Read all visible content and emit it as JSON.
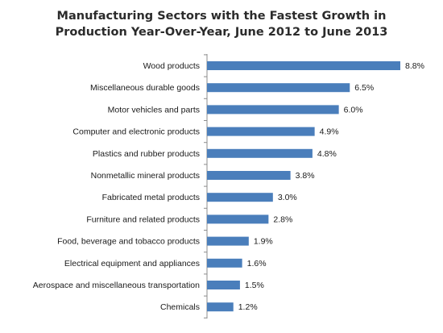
{
  "chart_data": {
    "type": "bar",
    "orientation": "horizontal",
    "title": "Manufacturing Sectors with the Fastest Growth in Production Year-Over-Year, June 2012 to June 2013",
    "title_lines": [
      "Manufacturing Sectors with the Fastest Growth in",
      "Production Year-Over-Year, June 2012 to June 2013"
    ],
    "categories": [
      "Wood products",
      "Miscellaneous durable goods",
      "Motor vehicles and parts",
      "Computer and electronic products",
      "Plastics and rubber products",
      "Nonmetallic mineral products",
      "Fabricated metal products",
      "Furniture and related products",
      "Food, beverage and tobacco products",
      "Electrical equipment and appliances",
      "Aerospace and miscellaneous transportation",
      "Chemicals"
    ],
    "values": [
      8.8,
      6.5,
      6.0,
      4.9,
      4.8,
      3.8,
      3.0,
      2.8,
      1.9,
      1.6,
      1.5,
      1.2
    ],
    "value_labels": [
      "8.8%",
      "6.5%",
      "6.0%",
      "4.9%",
      "4.8%",
      "3.8%",
      "3.0%",
      "2.8%",
      "1.9%",
      "1.6%",
      "1.5%",
      "1.2%"
    ],
    "xlabel": "",
    "ylabel": "",
    "xlim": [
      0,
      8.8
    ],
    "grid": false,
    "legend": "none",
    "bar_color": "#4a7ebb",
    "axis_color": "#8c8c8c"
  }
}
